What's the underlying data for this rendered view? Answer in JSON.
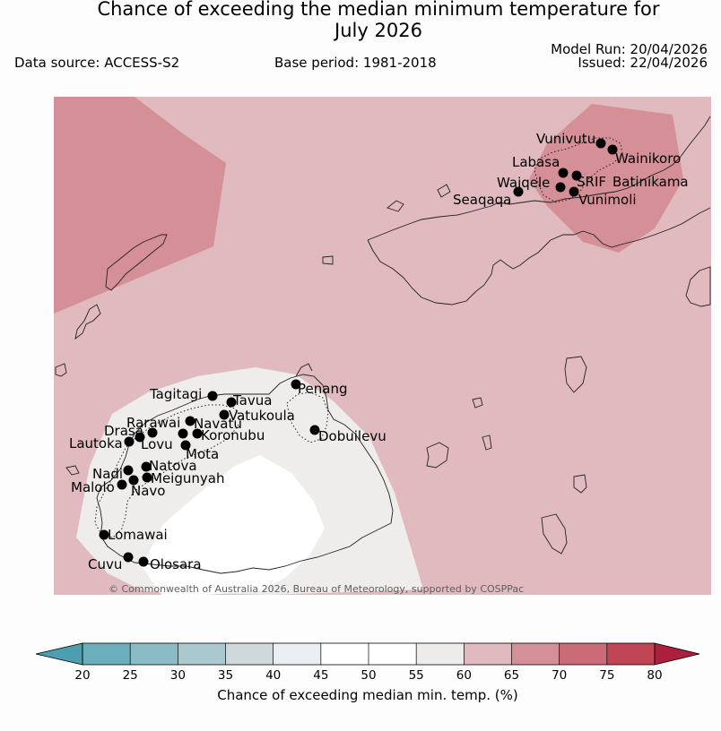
{
  "header": {
    "title_line1": "Chance of exceeding the median minimum temperature for",
    "title_line2": "July 2026",
    "data_source": "Data source: ACCESS-S2",
    "base_period": "Base period: 1981-2018",
    "model_run": "Model Run: 20/04/2026",
    "issued": "Issued: 22/04/2026"
  },
  "map": {
    "copyright": "© Commonwealth of Australia 2026, Bureau of Meteorology, supported by COSPPac",
    "colors": {
      "c60_65": "#e0babe",
      "c65_70": "#d58f96",
      "c45_55": "#ffffff",
      "c55_60": "#efedeb"
    },
    "stations": [
      {
        "name": "Vunivutu"
      },
      {
        "name": "Wainikoro"
      },
      {
        "name": "Labasa"
      },
      {
        "name": "SRIF"
      },
      {
        "name": "Batinikama"
      },
      {
        "name": "Waiqele"
      },
      {
        "name": "Vunimoli"
      },
      {
        "name": "Seaqaqa"
      },
      {
        "name": "Penang"
      },
      {
        "name": "Tagitagi"
      },
      {
        "name": "Tavua"
      },
      {
        "name": "Vatukoula"
      },
      {
        "name": "Rarawai"
      },
      {
        "name": "Navatu"
      },
      {
        "name": "Drasa"
      },
      {
        "name": "Koronubu"
      },
      {
        "name": "Lautoka"
      },
      {
        "name": "Lovu"
      },
      {
        "name": "Mota"
      },
      {
        "name": "Dobuilevu"
      },
      {
        "name": "Natova"
      },
      {
        "name": "Nadi"
      },
      {
        "name": "Meigunyah"
      },
      {
        "name": "Malolo"
      },
      {
        "name": "Navo"
      },
      {
        "name": "Lomawai"
      },
      {
        "name": "Cuvu"
      },
      {
        "name": "Olosara"
      }
    ]
  },
  "colorbar": {
    "title": "Chance of exceeding median min. temp. (%)",
    "ticks": [
      "20",
      "25",
      "30",
      "35",
      "40",
      "45",
      "50",
      "55",
      "60",
      "65",
      "70",
      "75",
      "80"
    ],
    "colors": [
      "#6baebb",
      "#8bbcc5",
      "#aac9ce",
      "#cfd9db",
      "#e9eff2",
      "#ffffff",
      "#ffffff",
      "#edecea",
      "#e0babe",
      "#d58f96",
      "#cb6b77",
      "#c04656"
    ],
    "low_extend_color": "#4d9eae",
    "high_extend_color": "#ad1f3c"
  }
}
